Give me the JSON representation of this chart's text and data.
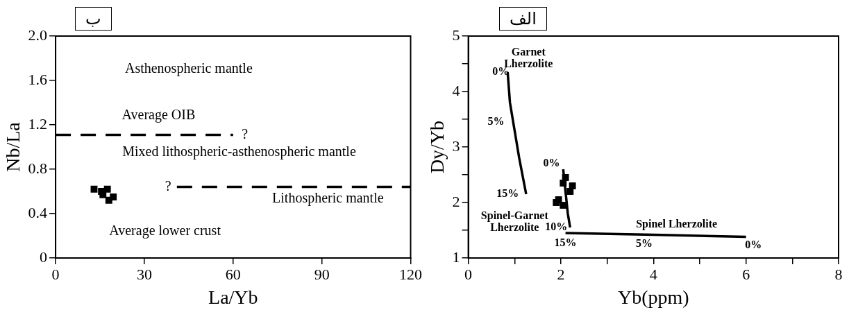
{
  "chart_data": [
    {
      "type": "scatter",
      "title": "ب",
      "xlabel": "La/Yb",
      "ylabel": "Nb/La",
      "xlim": [
        0,
        120
      ],
      "xticks": [
        0,
        30,
        60,
        90,
        120
      ],
      "ylim": [
        0,
        2
      ],
      "yticks": [
        0,
        {
          "value": 0.4,
          "label": "0.4"
        },
        {
          "value": 0.8,
          "label": "0.8"
        },
        {
          "value": 1.2,
          "label": "1.2"
        },
        {
          "value": 1.6,
          "label": "1.6"
        },
        {
          "value": 2,
          "label": "2.0"
        }
      ],
      "grid": false,
      "legend": false,
      "series": [
        {
          "type": "scatter",
          "marker": "square",
          "color": "#000000",
          "x": [
            13,
            15.5,
            17.5,
            16,
            18,
            19.5
          ],
          "values": [
            0.62,
            0.6,
            0.62,
            0.57,
            0.52,
            0.55
          ]
        },
        {
          "type": "line",
          "line_style": "dashed",
          "marker": "none",
          "color": "#000000",
          "x": [
            0,
            60
          ],
          "values": [
            1.11,
            1.11
          ]
        },
        {
          "type": "line",
          "line_style": "dashed",
          "marker": "none",
          "color": "#000000",
          "x": [
            41,
            120
          ],
          "values": [
            0.64,
            0.64
          ]
        }
      ],
      "annotations": [
        "Asthenospheric mantle",
        "Average OIB",
        "?",
        "Mixed lithospheric-asthenospheric mantle",
        "?",
        "Lithospheric mantle",
        "Average lower crust"
      ]
    },
    {
      "type": "scatter",
      "title": "الف",
      "xlabel": "Yb(ppm)",
      "ylabel": "Dy/Yb",
      "xlim": [
        0,
        8
      ],
      "xticks": [
        0,
        {
          "value": 1,
          "label": null
        },
        2,
        {
          "value": 3,
          "label": null
        },
        4,
        {
          "value": 5,
          "label": null
        },
        6,
        {
          "value": 7,
          "label": null
        },
        8
      ],
      "ylim": [
        1,
        5
      ],
      "yticks": [
        1,
        {
          "value": 1.5,
          "label": null
        },
        2,
        {
          "value": 2.5,
          "label": null
        },
        3,
        {
          "value": 3.5,
          "label": null
        },
        4,
        {
          "value": 4.5,
          "label": null
        },
        5
      ],
      "grid": false,
      "legend": false,
      "series": [
        {
          "type": "line",
          "marker": "none",
          "color": "#000000",
          "x": [
            0.85,
            0.9,
            1.0,
            1.1,
            1.25
          ],
          "values": [
            4.35,
            3.8,
            3.3,
            2.8,
            2.15
          ]
        },
        {
          "type": "line",
          "marker": "none",
          "color": "#000000",
          "x": [
            2.05,
            2.1,
            2.15,
            2.2
          ],
          "values": [
            2.6,
            2.2,
            1.8,
            1.55
          ]
        },
        {
          "type": "line",
          "marker": "none",
          "color": "#000000",
          "x": [
            2.1,
            4,
            6
          ],
          "values": [
            1.45,
            1.42,
            1.38
          ]
        },
        {
          "type": "scatter",
          "marker": "square",
          "color": "#000000",
          "x": [
            2.1,
            2.05,
            2.25,
            2.2,
            1.95,
            2.05,
            1.9
          ],
          "values": [
            2.45,
            2.35,
            2.3,
            2.2,
            2.05,
            1.95,
            2.0
          ]
        }
      ],
      "annotations": [
        "Garnet\nLherzolite",
        "0%",
        "5%",
        "15%",
        "0%",
        "Spinel-Garnet\nLherzolite",
        "10%",
        "15%",
        "5%",
        "0%",
        "Spinel Lherzolite"
      ]
    }
  ]
}
